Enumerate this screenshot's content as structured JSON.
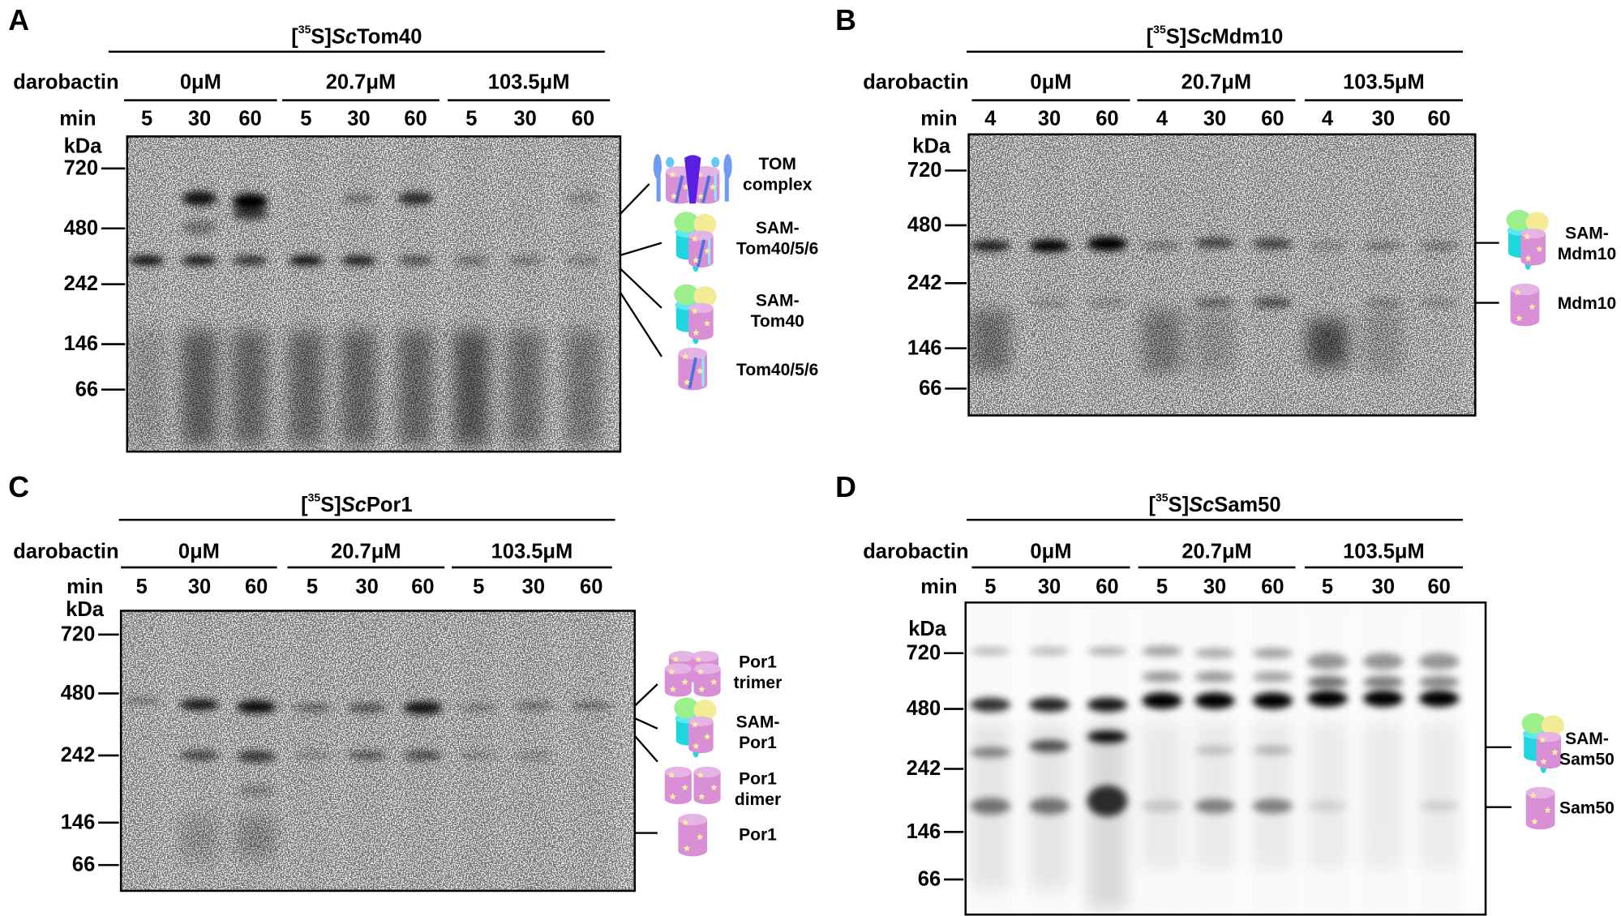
{
  "panels": [
    {
      "letter": "A",
      "title": {
        "iso": "35",
        "element": "S",
        "species": "Sc",
        "protein": "Tom40"
      },
      "treatment_label": "darobactin",
      "groups": [
        "0μM",
        "20.7μM",
        "103.5μM"
      ],
      "time_label": "min",
      "times": [
        "5",
        "30",
        "60",
        "5",
        "30",
        "60",
        "5",
        "30",
        "60"
      ],
      "mw_unit": "kDa",
      "markers": [
        "720",
        "480",
        "242",
        "146",
        "66"
      ],
      "legend": [
        [
          "TOM",
          "complex"
        ],
        [
          "SAM-",
          "Tom40/5/6"
        ],
        [
          "SAM-",
          "Tom40"
        ],
        [
          "Tom40/5/6"
        ]
      ]
    },
    {
      "letter": "B",
      "title": {
        "iso": "35",
        "element": "S",
        "species": "Sc",
        "protein": "Mdm10"
      },
      "treatment_label": "darobactin",
      "groups": [
        "0μM",
        "20.7μM",
        "103.5μM"
      ],
      "time_label": "min",
      "times": [
        "4",
        "30",
        "60",
        "4",
        "30",
        "60",
        "4",
        "30",
        "60"
      ],
      "mw_unit": "kDa",
      "markers": [
        "720",
        "480",
        "242",
        "146",
        "66"
      ],
      "legend": [
        [
          "SAM-",
          "Mdm10"
        ],
        [
          "Mdm10"
        ]
      ]
    },
    {
      "letter": "C",
      "title": {
        "iso": "35",
        "element": "S",
        "species": "Sc",
        "protein": "Por1"
      },
      "treatment_label": "darobactin",
      "groups": [
        "0μM",
        "20.7μM",
        "103.5μM"
      ],
      "time_label": "min",
      "times": [
        "5",
        "30",
        "60",
        "5",
        "30",
        "60",
        "5",
        "30",
        "60"
      ],
      "mw_unit": "kDa",
      "markers": [
        "720",
        "480",
        "242",
        "146",
        "66"
      ],
      "legend": [
        [
          "Por1",
          "trimer"
        ],
        [
          "SAM-",
          "Por1"
        ],
        [
          "Por1",
          "dimer"
        ],
        [
          "Por1"
        ]
      ]
    },
    {
      "letter": "D",
      "title": {
        "iso": "35",
        "element": "S",
        "species": "Sc",
        "protein": "Sam50"
      },
      "treatment_label": "darobactin",
      "groups": [
        "0μM",
        "20.7μM",
        "103.5μM"
      ],
      "time_label": "min",
      "times": [
        "5",
        "30",
        "60",
        "5",
        "30",
        "60",
        "5",
        "30",
        "60"
      ],
      "mw_unit": "kDa",
      "markers": [
        "720",
        "480",
        "242",
        "146",
        "66"
      ],
      "legend": [
        [
          "SAM-",
          "Sam50"
        ],
        [
          "Sam50"
        ]
      ]
    }
  ],
  "colors": {
    "pink": "#d98fd6",
    "cyan": "#1fd6e0",
    "green": "#9cf08c",
    "yellow": "#f3eb96",
    "blue": "#4f6fe0",
    "violet": "#5a1fe0",
    "star": "#f6f0a0"
  }
}
